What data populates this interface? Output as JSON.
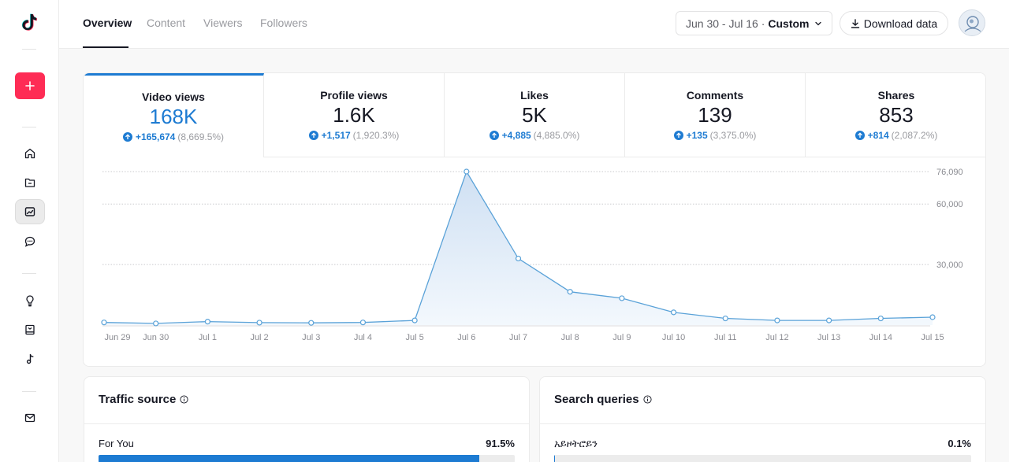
{
  "nav": {
    "tabs": [
      {
        "label": "Overview",
        "active": true
      },
      {
        "label": "Content",
        "active": false
      },
      {
        "label": "Viewers",
        "active": false
      },
      {
        "label": "Followers",
        "active": false
      }
    ],
    "date_range": {
      "dates": "Jun 30 - Jul 16 ·",
      "mode": "Custom"
    },
    "download_label": "Download data"
  },
  "sidebar": {
    "upload_icon": "plus-icon",
    "items": [
      {
        "icon": "home-icon"
      },
      {
        "icon": "folder-icon"
      },
      {
        "icon": "analytics-icon",
        "active": true
      },
      {
        "icon": "comment-icon"
      },
      {
        "icon": "lightbulb-icon"
      },
      {
        "icon": "book-icon"
      },
      {
        "icon": "music-icon"
      },
      {
        "icon": "mail-icon"
      }
    ]
  },
  "metrics": [
    {
      "label": "Video views",
      "value": "168K",
      "delta": "+165,674",
      "pct": "(8,669.5%)"
    },
    {
      "label": "Profile views",
      "value": "1.6K",
      "delta": "+1,517",
      "pct": "(1,920.3%)"
    },
    {
      "label": "Likes",
      "value": "5K",
      "delta": "+4,885",
      "pct": "(4,885.0%)"
    },
    {
      "label": "Comments",
      "value": "139",
      "delta": "+135",
      "pct": "(3,375.0%)"
    },
    {
      "label": "Shares",
      "value": "853",
      "delta": "+814",
      "pct": "(2,087.2%)"
    }
  ],
  "chart_data": {
    "type": "area",
    "categories": [
      "Jun 29",
      "Jun 30",
      "Jul 1",
      "Jul 2",
      "Jul 3",
      "Jul 4",
      "Jul 5",
      "Jul 6",
      "Jul 7",
      "Jul 8",
      "Jul 9",
      "Jul 10",
      "Jul 11",
      "Jul 12",
      "Jul 13",
      "Jul 14",
      "Jul 15"
    ],
    "series": [
      {
        "values": [
          1300,
          800,
          1700,
          1200,
          1100,
          1300,
          2300,
          76090,
          33000,
          16500,
          13300,
          6300,
          3300,
          2300,
          2300,
          3300,
          3900
        ]
      }
    ],
    "y_ticks": [
      "76,090",
      "60,000",
      "30,000"
    ],
    "y_tick_values": [
      76090,
      60000,
      30000
    ],
    "ylim": [
      0,
      76090
    ],
    "grid": true,
    "colors": {
      "line": "#5aa2d8",
      "fill_top": "#cfe0f3",
      "fill_bottom": "#f3f8fd"
    }
  },
  "traffic": {
    "title": "Traffic source",
    "row_label": "For You",
    "row_pct": "91.5%",
    "fraction": 0.915
  },
  "search": {
    "title": "Search queries",
    "row_label": "አይዞትሮይን",
    "row_pct": "0.1%",
    "fraction": 0.001
  },
  "colors": {
    "accent": "#1d7bd2",
    "brand": "#fe2c55"
  }
}
